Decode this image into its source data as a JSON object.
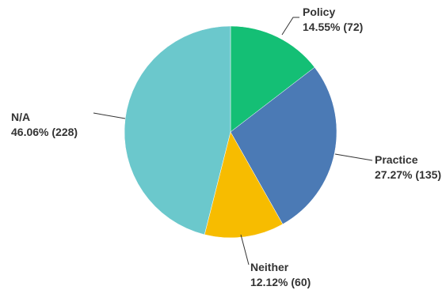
{
  "chart_data": {
    "type": "pie",
    "title": "",
    "start_angle_deg": 0,
    "direction": "clockwise",
    "slices": [
      {
        "label": "Policy",
        "percent": 14.55,
        "count": 72,
        "value_text": "14.55% (72)",
        "color": "#14bf75"
      },
      {
        "label": "Practice",
        "percent": 27.27,
        "count": 135,
        "value_text": "27.27% (135)",
        "color": "#4b7ab5"
      },
      {
        "label": "Neither",
        "percent": 12.12,
        "count": 60,
        "value_text": "12.12% (60)",
        "color": "#f7bc00"
      },
      {
        "label": "N/A",
        "percent": 46.06,
        "count": 228,
        "value_text": "46.06% (228)",
        "color": "#6bc8cc"
      }
    ]
  }
}
